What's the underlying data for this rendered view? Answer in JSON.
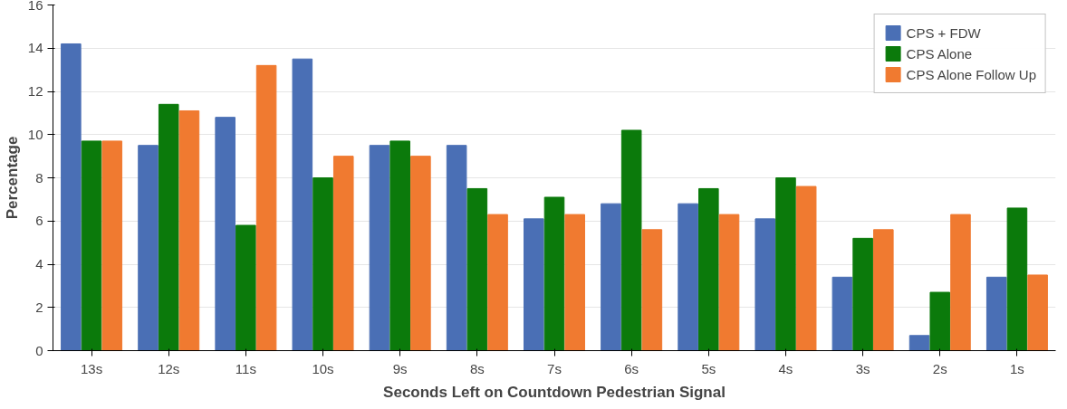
{
  "chart_data": {
    "type": "bar",
    "xlabel": "Seconds Left on Countdown Pedestrian Signal",
    "ylabel": "Percentage",
    "categories": [
      "13s",
      "12s",
      "11s",
      "10s",
      "9s",
      "8s",
      "7s",
      "6s",
      "5s",
      "4s",
      "3s",
      "2s",
      "1s"
    ],
    "series": [
      {
        "name": "CPS + FDW",
        "color": "#4a6fb5",
        "values": [
          14.2,
          9.5,
          10.8,
          13.5,
          9.5,
          9.5,
          6.1,
          6.8,
          6.8,
          6.1,
          3.4,
          0.7,
          3.4
        ]
      },
      {
        "name": "CPS Alone",
        "color": "#0b7a0b",
        "values": [
          9.7,
          11.4,
          5.8,
          8.0,
          9.7,
          7.5,
          7.1,
          10.2,
          7.5,
          8.0,
          5.2,
          2.7,
          6.6
        ]
      },
      {
        "name": "CPS Alone Follow Up",
        "color": "#f07a30",
        "values": [
          9.7,
          11.1,
          13.2,
          9.0,
          9.0,
          6.3,
          6.3,
          5.6,
          6.3,
          7.6,
          5.6,
          6.3,
          3.5
        ]
      }
    ],
    "ylim": [
      0,
      16
    ],
    "yticks": [
      0,
      2,
      4,
      6,
      8,
      10,
      12,
      14,
      16
    ],
    "grid": "y",
    "legend": "top right"
  }
}
